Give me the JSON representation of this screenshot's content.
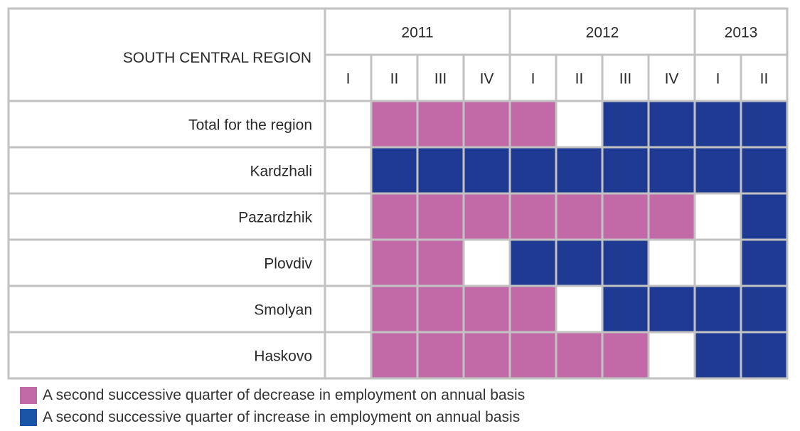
{
  "chart_data": {
    "type": "heatmap",
    "corner_label": "SOUTH CENTRAL REGION",
    "years": [
      {
        "label": "2011",
        "span": 4
      },
      {
        "label": "2012",
        "span": 4
      },
      {
        "label": "2013",
        "span": 2
      }
    ],
    "quarters": [
      "I",
      "II",
      "III",
      "IV",
      "I",
      "II",
      "III",
      "IV",
      "I",
      "II"
    ],
    "rows": [
      {
        "label": "Total for the region",
        "cells": [
          "none",
          "decrease",
          "decrease",
          "decrease",
          "decrease",
          "none",
          "increase",
          "increase",
          "increase",
          "increase"
        ]
      },
      {
        "label": "Kardzhali",
        "cells": [
          "none",
          "increase",
          "increase",
          "increase",
          "increase",
          "increase",
          "increase",
          "increase",
          "increase",
          "increase"
        ]
      },
      {
        "label": "Pazardzhik",
        "cells": [
          "none",
          "decrease",
          "decrease",
          "decrease",
          "decrease",
          "decrease",
          "decrease",
          "decrease",
          "none",
          "increase"
        ]
      },
      {
        "label": "Plovdiv",
        "cells": [
          "none",
          "decrease",
          "decrease",
          "none",
          "increase",
          "increase",
          "increase",
          "none",
          "none",
          "increase"
        ]
      },
      {
        "label": "Smolyan",
        "cells": [
          "none",
          "decrease",
          "decrease",
          "decrease",
          "decrease",
          "none",
          "increase",
          "increase",
          "increase",
          "increase"
        ]
      },
      {
        "label": "Haskovo",
        "cells": [
          "none",
          "decrease",
          "decrease",
          "decrease",
          "decrease",
          "decrease",
          "decrease",
          "none",
          "increase",
          "increase"
        ]
      }
    ],
    "legend": [
      {
        "key": "decrease",
        "label": "A second successive quarter of decrease in employment on annual basis"
      },
      {
        "key": "increase",
        "label": "A second successive quarter of increase in employment on annual basis"
      }
    ],
    "colors": {
      "decrease": "#c26aa8",
      "increase": "#1f3a93",
      "none": "#ffffff",
      "grid": "#c2c2c2",
      "legend_increase": "#1a55a8"
    }
  }
}
